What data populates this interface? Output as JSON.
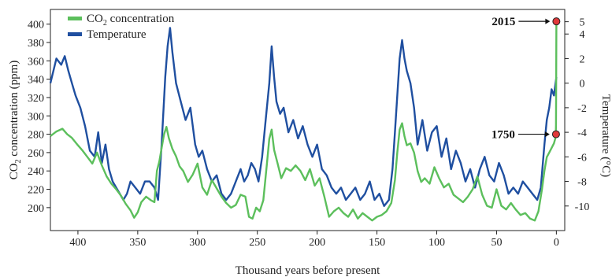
{
  "chart_data": {
    "type": "line",
    "xlabel": "Thousand years before present",
    "ylabel_left": "CO2 concentration (ppm)",
    "ylabel_right": "Temperature (°C)",
    "xlim": [
      423,
      -7
    ],
    "ylim_left": [
      175,
      416
    ],
    "ylim_right": [
      -12,
      6
    ],
    "x_ticks": [
      400,
      350,
      300,
      250,
      200,
      150,
      100,
      50,
      0
    ],
    "y_ticks_left": [
      200,
      220,
      240,
      260,
      280,
      300,
      320,
      340,
      360,
      380,
      400
    ],
    "y_ticks_right": [
      5,
      4,
      2,
      0,
      -2,
      -4,
      -6,
      -8,
      -10
    ],
    "legend": {
      "placement": "top-left",
      "items": [
        {
          "label": "CO2 concentration",
          "color": "#5cbf5c"
        },
        {
          "label": "Temperature",
          "color": "#1f4fa0"
        }
      ]
    },
    "annotations": [
      {
        "label": "2015",
        "x": 0,
        "y": 403,
        "axis": "left",
        "color": "#e0393a"
      },
      {
        "label": "1750",
        "x": 0.3,
        "y": 280,
        "axis": "left",
        "color": "#e0393a"
      }
    ],
    "series": [
      {
        "name": "CO2 concentration",
        "axis": "left",
        "color": "#5cbf5c",
        "x": [
          423,
          418,
          413,
          409,
          405,
          400,
          396,
          392,
          388,
          384,
          380,
          376,
          372,
          368,
          364,
          360,
          356,
          353,
          350,
          347,
          343,
          339,
          336,
          334,
          332,
          330,
          328,
          326,
          324,
          321,
          318,
          315,
          312,
          308,
          304,
          300,
          296,
          292,
          288,
          284,
          280,
          276,
          272,
          268,
          264,
          260,
          257,
          254,
          251,
          248,
          245,
          242,
          240,
          238,
          236,
          233,
          230,
          226,
          222,
          218,
          214,
          210,
          206,
          202,
          198,
          194,
          190,
          186,
          182,
          178,
          174,
          170,
          166,
          162,
          158,
          154,
          150,
          146,
          142,
          138,
          135,
          133,
          131,
          129,
          127,
          125,
          122,
          119,
          116,
          113,
          110,
          106,
          102,
          98,
          94,
          90,
          86,
          82,
          78,
          74,
          70,
          66,
          62,
          58,
          54,
          50,
          46,
          42,
          38,
          34,
          30,
          26,
          22,
          18,
          15,
          12,
          10,
          8,
          6,
          4,
          2,
          1,
          0.5,
          0.3,
          0.15,
          0
        ],
        "values": [
          278,
          283,
          286,
          280,
          276,
          268,
          262,
          255,
          248,
          260,
          246,
          234,
          226,
          220,
          213,
          204,
          197,
          189,
          195,
          206,
          212,
          208,
          206,
          240,
          250,
          265,
          280,
          288,
          276,
          264,
          256,
          245,
          240,
          228,
          236,
          248,
          222,
          214,
          230,
          221,
          212,
          205,
          200,
          203,
          214,
          212,
          190,
          188,
          200,
          196,
          208,
          248,
          275,
          285,
          263,
          248,
          232,
          243,
          240,
          246,
          240,
          230,
          242,
          224,
          232,
          212,
          190,
          196,
          200,
          194,
          190,
          198,
          188,
          194,
          190,
          186,
          190,
          192,
          196,
          205,
          230,
          260,
          285,
          292,
          278,
          268,
          270,
          260,
          240,
          228,
          232,
          226,
          244,
          232,
          222,
          226,
          214,
          210,
          206,
          212,
          220,
          234,
          214,
          202,
          200,
          220,
          202,
          198,
          205,
          198,
          192,
          194,
          188,
          186,
          196,
          220,
          240,
          255,
          260,
          265,
          270,
          275,
          280,
          290,
          330,
          403
        ]
      },
      {
        "name": "Temperature",
        "axis": "right",
        "color": "#1f4fa0",
        "x": [
          423,
          418,
          414,
          411,
          408,
          405,
          402,
          398,
          394,
          390,
          386,
          383,
          380,
          377,
          374,
          371,
          368,
          365,
          362,
          359,
          356,
          352,
          348,
          344,
          340,
          336,
          333,
          330,
          327,
          325,
          323,
          321,
          318,
          314,
          310,
          306,
          302,
          299,
          296,
          292,
          288,
          284,
          280,
          276,
          272,
          268,
          264,
          261,
          258,
          255,
          252,
          249,
          246,
          243,
          240,
          238,
          236,
          234,
          231,
          228,
          224,
          220,
          216,
          212,
          208,
          204,
          200,
          196,
          192,
          188,
          184,
          180,
          176,
          172,
          168,
          164,
          160,
          156,
          152,
          148,
          144,
          140,
          137,
          135,
          133,
          131,
          129,
          127,
          125,
          122,
          119,
          116,
          112,
          108,
          104,
          100,
          96,
          92,
          88,
          84,
          80,
          76,
          72,
          68,
          64,
          60,
          56,
          52,
          48,
          44,
          40,
          36,
          32,
          28,
          24,
          20,
          16,
          13,
          10,
          8,
          6,
          4,
          2,
          0
        ],
        "values": [
          0.0,
          2.0,
          1.5,
          2.2,
          1.0,
          0.0,
          -1.0,
          -2.0,
          -3.5,
          -5.5,
          -6.0,
          -4.0,
          -6.5,
          -5.0,
          -7.0,
          -8.0,
          -8.5,
          -9.0,
          -9.5,
          -9.0,
          -8.0,
          -8.5,
          -9.0,
          -8.0,
          -8.0,
          -8.5,
          -9.5,
          -5.0,
          0.5,
          3.0,
          4.5,
          2.5,
          0.0,
          -1.5,
          -3.0,
          -2.0,
          -5.0,
          -6.0,
          -5.5,
          -7.0,
          -8.0,
          -7.5,
          -9.0,
          -9.5,
          -9.0,
          -8.0,
          -7.0,
          -8.0,
          -7.5,
          -6.5,
          -7.0,
          -8.0,
          -6.0,
          -3.0,
          0.0,
          3.0,
          0.5,
          -1.5,
          -2.5,
          -2.0,
          -4.0,
          -3.0,
          -4.5,
          -3.5,
          -5.0,
          -6.0,
          -5.0,
          -7.0,
          -7.5,
          -8.5,
          -9.0,
          -8.5,
          -9.5,
          -9.0,
          -8.5,
          -9.5,
          -9.0,
          -8.0,
          -9.5,
          -9.0,
          -10.0,
          -9.5,
          -7.0,
          -4.0,
          -1.0,
          2.0,
          3.5,
          2.0,
          1.0,
          0.0,
          -2.0,
          -5.0,
          -3.0,
          -5.5,
          -4.0,
          -3.5,
          -6.0,
          -4.5,
          -7.0,
          -5.5,
          -6.5,
          -8.0,
          -7.0,
          -8.5,
          -7.0,
          -6.0,
          -7.5,
          -8.0,
          -6.5,
          -7.5,
          -9.0,
          -8.5,
          -9.0,
          -8.0,
          -8.5,
          -9.0,
          -9.5,
          -8.5,
          -5.0,
          -3.0,
          -2.0,
          -0.5,
          -1.0,
          0.5
        ]
      }
    ]
  }
}
